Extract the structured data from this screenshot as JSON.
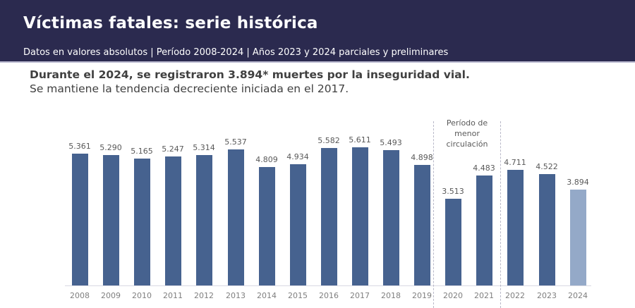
{
  "header": {
    "title": "Víctimas fatales: serie histórica",
    "subtitle": "Datos en valores absolutos | Período 2008-2024 | Años 2023 y 2024 parciales y preliminares",
    "background": "#2b2a4f"
  },
  "headline": {
    "bold": "Durante el 2024, se registraron 3.894* muertes por la inseguridad vial.",
    "regular": "Se mantiene la tendencia decreciente iniciada en el 2017."
  },
  "annotation": {
    "line1": "Período de",
    "line2": "menor",
    "line3": "circulación"
  },
  "bars": [
    {
      "year": "2008",
      "label": "5.361"
    },
    {
      "year": "2009",
      "label": "5.290"
    },
    {
      "year": "2010",
      "label": "5.165"
    },
    {
      "year": "2011",
      "label": "5.247"
    },
    {
      "year": "2012",
      "label": "5.314"
    },
    {
      "year": "2013",
      "label": "5.537"
    },
    {
      "year": "2014",
      "label": "4.809"
    },
    {
      "year": "2015",
      "label": "4.934"
    },
    {
      "year": "2016",
      "label": "5.582"
    },
    {
      "year": "2017",
      "label": "5.611"
    },
    {
      "year": "2018",
      "label": "5.493"
    },
    {
      "year": "2019",
      "label": "4.898"
    },
    {
      "year": "2020",
      "label": "3.513"
    },
    {
      "year": "2021",
      "label": "4.483"
    },
    {
      "year": "2022",
      "label": "4.711"
    },
    {
      "year": "2023",
      "label": "4.522"
    },
    {
      "year": "2024",
      "label": "3.894"
    }
  ],
  "chart_data": {
    "type": "bar",
    "title": "Víctimas fatales: serie histórica",
    "subtitle": "Datos en valores absolutos | Período 2008-2024 | Años 2023 y 2024 parciales y preliminares",
    "xlabel": "",
    "ylabel": "",
    "categories": [
      "2008",
      "2009",
      "2010",
      "2011",
      "2012",
      "2013",
      "2014",
      "2015",
      "2016",
      "2017",
      "2018",
      "2019",
      "2020",
      "2021",
      "2022",
      "2023",
      "2024"
    ],
    "values": [
      5361,
      5290,
      5165,
      5247,
      5314,
      5537,
      4809,
      4934,
      5582,
      5611,
      5493,
      4898,
      3513,
      4483,
      4711,
      4522,
      3894
    ],
    "ylim": [
      0,
      6000
    ],
    "grid": false,
    "legend": null,
    "colors": {
      "bar": "#46628f",
      "bar_2024_preliminary": "#94a9c8"
    },
    "annotations": [
      {
        "text": "Período de menor circulación",
        "span": [
          "2020",
          "2021"
        ],
        "style": "dashed vertical separators"
      }
    ]
  }
}
